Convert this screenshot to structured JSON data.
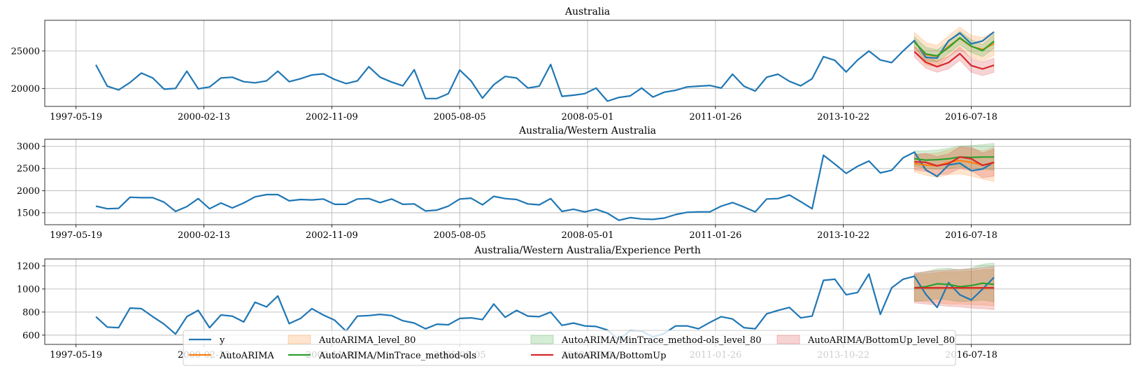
{
  "chart_data": [
    {
      "type": "line",
      "title": "Australia",
      "ylim": [
        17600,
        29100
      ],
      "yticks": [
        20000,
        25000
      ],
      "ytick_labels": [
        "20000",
        "25000"
      ],
      "x_start": "1998-01-01",
      "x_step_months": 3,
      "series": [
        {
          "name": "y",
          "color": "#1f77b4",
          "start": 0,
          "values": [
            23150,
            20300,
            19800,
            20800,
            22050,
            21400,
            19900,
            20000,
            22300,
            19950,
            20200,
            21400,
            21500,
            20900,
            20750,
            21000,
            22300,
            20900,
            21300,
            21800,
            21950,
            21200,
            20650,
            21000,
            22900,
            21500,
            20850,
            20350,
            22500,
            18650,
            18650,
            19300,
            22450,
            21000,
            18700,
            20500,
            21600,
            21400,
            20050,
            20300,
            23200,
            18950,
            19100,
            19300,
            20050,
            18300,
            18800,
            19000,
            20050,
            18850,
            19500,
            19750,
            20200,
            20300,
            20400,
            20050,
            21900,
            20300,
            19650,
            21500,
            21900,
            20950,
            20350,
            21300,
            24250,
            23750,
            22200,
            23800,
            25000,
            23800,
            23450,
            25000,
            26400,
            24150,
            24050,
            26350,
            27400,
            25950,
            26350,
            27550
          ]
        },
        {
          "name": "AutoARIMA",
          "color": "#ff7f0e",
          "start": 72,
          "values": [
            26250,
            24500,
            24300,
            25600,
            26700,
            25600,
            25200,
            26000
          ]
        },
        {
          "name": "AutoARIMA/MinTrace_method-ols",
          "color": "#2ca02c",
          "start": 72,
          "values": [
            26200,
            24600,
            24350,
            25450,
            26750,
            25650,
            25050,
            26300
          ]
        },
        {
          "name": "AutoARIMA/BottomUp",
          "color": "#d62728",
          "start": 72,
          "values": [
            24900,
            23500,
            22900,
            23450,
            24650,
            23050,
            22600,
            23100
          ]
        }
      ],
      "bands": [
        {
          "name": "AutoARIMA_level_80",
          "color": "#ff7f0e",
          "start": 72,
          "lower": [
            25000,
            23150,
            22850,
            24150,
            25200,
            24100,
            23600,
            24400
          ],
          "upper": [
            27500,
            26150,
            25750,
            27050,
            28200,
            27100,
            26800,
            27600
          ]
        },
        {
          "name": "AutoARIMA/MinTrace_method-ols_level_80",
          "color": "#2ca02c",
          "start": 72,
          "lower": [
            25500,
            23700,
            23550,
            24650,
            25850,
            24800,
            24250,
            25350
          ],
          "upper": [
            26900,
            25500,
            25150,
            26250,
            27650,
            26500,
            25850,
            27250
          ]
        },
        {
          "name": "AutoARIMA/BottomUp_level_80",
          "color": "#d62728",
          "start": 72,
          "lower": [
            24200,
            22700,
            22150,
            22600,
            23750,
            22150,
            21700,
            22150
          ],
          "upper": [
            25600,
            24300,
            23650,
            24300,
            25550,
            23950,
            23500,
            24050
          ]
        }
      ]
    },
    {
      "type": "line",
      "title": "Australia/Western Australia",
      "ylim": [
        1230,
        3160
      ],
      "yticks": [
        1500,
        2000,
        2500,
        3000
      ],
      "ytick_labels": [
        "1500",
        "2000",
        "2500",
        "3000"
      ],
      "x_start": "1998-01-01",
      "x_step_months": 3,
      "series": [
        {
          "name": "y",
          "color": "#1f77b4",
          "start": 0,
          "values": [
            1650,
            1590,
            1600,
            1850,
            1840,
            1840,
            1740,
            1530,
            1640,
            1820,
            1590,
            1720,
            1610,
            1720,
            1860,
            1910,
            1910,
            1770,
            1800,
            1790,
            1810,
            1690,
            1690,
            1810,
            1820,
            1730,
            1810,
            1690,
            1700,
            1540,
            1560,
            1650,
            1810,
            1830,
            1680,
            1870,
            1820,
            1800,
            1700,
            1680,
            1820,
            1530,
            1580,
            1520,
            1580,
            1490,
            1330,
            1390,
            1360,
            1350,
            1380,
            1460,
            1510,
            1520,
            1520,
            1650,
            1730,
            1630,
            1520,
            1810,
            1820,
            1900,
            1750,
            1590,
            2800,
            2600,
            2390,
            2550,
            2670,
            2400,
            2460,
            2740,
            2870,
            2470,
            2320,
            2580,
            2620,
            2450,
            2490,
            2640
          ]
        },
        {
          "name": "AutoARIMA",
          "color": "#ff7f0e",
          "start": 72,
          "values": [
            2610,
            2580,
            2560,
            2640,
            2680,
            2640,
            2580,
            2620
          ]
        },
        {
          "name": "AutoARIMA/MinTrace_method-ols",
          "color": "#2ca02c",
          "start": 72,
          "values": [
            2720,
            2690,
            2700,
            2720,
            2760,
            2750,
            2760,
            2760
          ]
        },
        {
          "name": "AutoARIMA/BottomUp",
          "color": "#d62728",
          "start": 72,
          "values": [
            2650,
            2640,
            2560,
            2610,
            2760,
            2720,
            2570,
            2640
          ]
        }
      ],
      "bands": [
        {
          "name": "AutoARIMA_level_80",
          "color": "#ff7f0e",
          "start": 72,
          "lower": [
            2420,
            2350,
            2300,
            2360,
            2380,
            2330,
            2260,
            2210
          ],
          "upper": [
            2810,
            2830,
            2850,
            2920,
            2980,
            2950,
            2900,
            2980
          ]
        },
        {
          "name": "AutoARIMA/MinTrace_method-ols_level_80",
          "color": "#2ca02c",
          "start": 72,
          "lower": [
            2550,
            2500,
            2480,
            2500,
            2530,
            2500,
            2490,
            2460
          ],
          "upper": [
            2900,
            2900,
            2920,
            2960,
            3010,
            3020,
            3040,
            3070
          ]
        },
        {
          "name": "AutoARIMA/BottomUp_level_80",
          "color": "#d62728",
          "start": 72,
          "lower": [
            2470,
            2430,
            2360,
            2380,
            2500,
            2450,
            2290,
            2330
          ],
          "upper": [
            2820,
            2840,
            2770,
            2830,
            2990,
            2980,
            2850,
            2940
          ]
        }
      ]
    },
    {
      "type": "line",
      "title": "Australia/Western Australia/Experience Perth",
      "ylim": [
        520,
        1260
      ],
      "yticks": [
        600,
        800,
        1000,
        1200
      ],
      "ytick_labels": [
        "600",
        "800",
        "1000",
        "1200"
      ],
      "x_start": "1998-01-01",
      "x_step_months": 3,
      "series": [
        {
          "name": "y",
          "color": "#1f77b4",
          "start": 0,
          "values": [
            760,
            670,
            665,
            835,
            830,
            760,
            695,
            610,
            760,
            815,
            665,
            775,
            765,
            715,
            885,
            845,
            940,
            700,
            745,
            830,
            775,
            730,
            635,
            765,
            770,
            780,
            770,
            725,
            705,
            655,
            695,
            690,
            745,
            750,
            735,
            870,
            755,
            815,
            765,
            760,
            800,
            685,
            705,
            680,
            675,
            645,
            560,
            640,
            635,
            585,
            615,
            680,
            680,
            655,
            710,
            760,
            740,
            665,
            655,
            785,
            815,
            840,
            750,
            765,
            1075,
            1085,
            950,
            970,
            1130,
            780,
            1010,
            1085,
            1110,
            955,
            840,
            1055,
            950,
            905,
            1000,
            1100
          ]
        },
        {
          "name": "AutoARIMA",
          "color": "#ff7f0e",
          "start": 72,
          "values": [
            1010,
            1010,
            1010,
            1010,
            1010,
            1010,
            1010,
            1010
          ]
        },
        {
          "name": "AutoARIMA/MinTrace_method-ols",
          "color": "#2ca02c",
          "start": 72,
          "values": [
            1010,
            1020,
            1045,
            1040,
            1020,
            1030,
            1050,
            1040
          ]
        },
        {
          "name": "AutoARIMA/BottomUp",
          "color": "#d62728",
          "start": 72,
          "values": [
            1010,
            1010,
            1010,
            1010,
            1010,
            1010,
            1010,
            1010
          ]
        }
      ],
      "bands": [
        {
          "name": "AutoARIMA_level_80",
          "color": "#ff7f0e",
          "start": 72,
          "lower": [
            895,
            890,
            880,
            870,
            870,
            865,
            860,
            855
          ],
          "upper": [
            1125,
            1130,
            1140,
            1150,
            1150,
            1155,
            1165,
            1170
          ]
        },
        {
          "name": "AutoARIMA/MinTrace_method-ols_level_80",
          "color": "#2ca02c",
          "start": 72,
          "lower": [
            895,
            900,
            915,
            905,
            890,
            895,
            905,
            890
          ],
          "upper": [
            1130,
            1150,
            1175,
            1180,
            1165,
            1180,
            1215,
            1225
          ]
        },
        {
          "name": "AutoARIMA/BottomUp_level_80",
          "color": "#d62728",
          "start": 72,
          "lower": [
            880,
            870,
            860,
            850,
            845,
            835,
            830,
            820
          ],
          "upper": [
            1140,
            1150,
            1160,
            1165,
            1170,
            1175,
            1185,
            1195
          ]
        }
      ]
    }
  ],
  "x_axis": {
    "tick_indices": [
      -1.75,
      9.5,
      20.75,
      32,
      43.25,
      54.5,
      65.75,
      77
    ],
    "tick_labels": [
      "1997-05-19",
      "2000-02-13",
      "2002-11-09",
      "2005-08-05",
      "2008-05-01",
      "2011-01-26",
      "2013-10-22",
      "2016-07-18"
    ],
    "xlim": [
      -4.5,
      91
    ]
  },
  "legend": {
    "placement": "lower center",
    "entries": [
      {
        "label": "y",
        "kind": "line",
        "color": "#1f77b4"
      },
      {
        "label": "AutoARIMA",
        "kind": "line",
        "color": "#ff7f0e"
      },
      {
        "label": "AutoARIMA_level_80",
        "kind": "patch",
        "color": "#ff7f0e"
      },
      {
        "label": "AutoARIMA/MinTrace_method-ols",
        "kind": "line",
        "color": "#2ca02c"
      },
      {
        "label": "AutoARIMA/MinTrace_method-ols_level_80",
        "kind": "patch",
        "color": "#2ca02c"
      },
      {
        "label": "AutoARIMA/BottomUp",
        "kind": "line",
        "color": "#d62728"
      },
      {
        "label": "AutoARIMA/BottomUp_level_80",
        "kind": "patch",
        "color": "#d62728"
      }
    ]
  }
}
